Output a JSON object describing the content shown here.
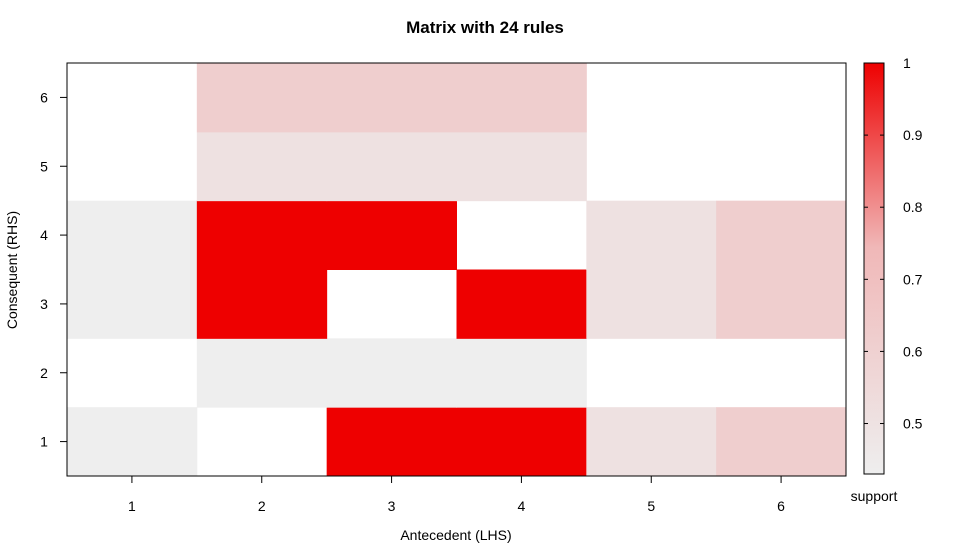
{
  "chart_data": {
    "type": "heatmap",
    "title": "Matrix with 24 rules",
    "xlabel": "Antecedent (LHS)",
    "ylabel": "Consequent (RHS)",
    "x_categories": [
      "1",
      "2",
      "3",
      "4",
      "5",
      "6"
    ],
    "y_categories": [
      "1",
      "2",
      "3",
      "4",
      "5",
      "6"
    ],
    "cells": [
      {
        "x": "1",
        "y": "1",
        "value": 0.43
      },
      {
        "x": "3",
        "y": "1",
        "value": 1.0
      },
      {
        "x": "4",
        "y": "1",
        "value": 1.0
      },
      {
        "x": "5",
        "y": "1",
        "value": 0.5
      },
      {
        "x": "6",
        "y": "1",
        "value": 0.6
      },
      {
        "x": "2",
        "y": "2",
        "value": 0.43
      },
      {
        "x": "3",
        "y": "2",
        "value": 0.43
      },
      {
        "x": "4",
        "y": "2",
        "value": 0.43
      },
      {
        "x": "1",
        "y": "3",
        "value": 0.43
      },
      {
        "x": "2",
        "y": "3",
        "value": 1.0
      },
      {
        "x": "4",
        "y": "3",
        "value": 1.0
      },
      {
        "x": "5",
        "y": "3",
        "value": 0.5
      },
      {
        "x": "6",
        "y": "3",
        "value": 0.6
      },
      {
        "x": "1",
        "y": "4",
        "value": 0.43
      },
      {
        "x": "2",
        "y": "4",
        "value": 1.0
      },
      {
        "x": "3",
        "y": "4",
        "value": 1.0
      },
      {
        "x": "5",
        "y": "4",
        "value": 0.5
      },
      {
        "x": "6",
        "y": "4",
        "value": 0.6
      },
      {
        "x": "2",
        "y": "5",
        "value": 0.5
      },
      {
        "x": "3",
        "y": "5",
        "value": 0.5
      },
      {
        "x": "4",
        "y": "5",
        "value": 0.5
      },
      {
        "x": "2",
        "y": "6",
        "value": 0.6
      },
      {
        "x": "3",
        "y": "6",
        "value": 0.6
      },
      {
        "x": "4",
        "y": "6",
        "value": 0.6
      }
    ],
    "legend": {
      "title": "support",
      "ticks": [
        "0.5",
        "0.6",
        "0.7",
        "0.8",
        "0.9",
        "1"
      ],
      "range": [
        0.43,
        1.0
      ],
      "low_color": "#eeeeee",
      "high_color": "#ee0000",
      "placement": "right"
    }
  }
}
